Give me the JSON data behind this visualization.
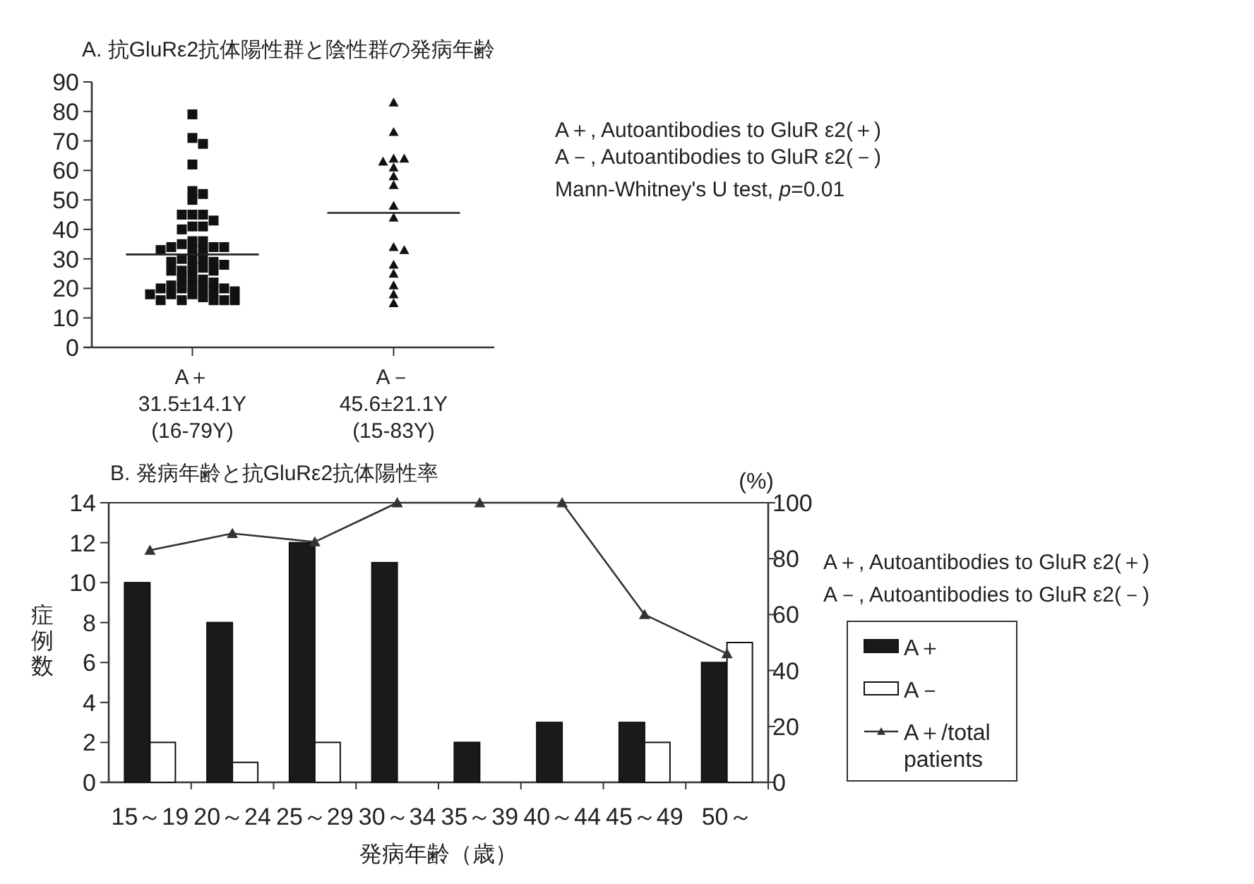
{
  "chart_data": [
    {
      "type": "scatter",
      "title": "A. 抗GluRε2抗体陽性群と陰性群の発病年齢",
      "categories": [
        "A＋\n31.5±14.1Y\n(16-79Y)",
        "A－\n45.6±21.1Y\n(15-83Y)"
      ],
      "series": [
        {
          "type": "scatter",
          "color": "#111111",
          "marker": "square",
          "x": [
            "A＋\n31.5±14.1Y\n(16-79Y)",
            "A＋\n31.5±14.1Y\n(16-79Y)",
            "A＋\n31.5±14.1Y\n(16-79Y)",
            "A＋\n31.5±14.1Y\n(16-79Y)",
            "A＋\n31.5±14.1Y\n(16-79Y)",
            "A＋\n31.5±14.1Y\n(16-79Y)",
            "A＋\n31.5±14.1Y\n(16-79Y)",
            "A＋\n31.5±14.1Y\n(16-79Y)",
            "A＋\n31.5±14.1Y\n(16-79Y)",
            "A＋\n31.5±14.1Y\n(16-79Y)",
            "A＋\n31.5±14.1Y\n(16-79Y)",
            "A＋\n31.5±14.1Y\n(16-79Y)",
            "A＋\n31.5±14.1Y\n(16-79Y)",
            "A＋\n31.5±14.1Y\n(16-79Y)",
            "A＋\n31.5±14.1Y\n(16-79Y)",
            "A＋\n31.5±14.1Y\n(16-79Y)",
            "A＋\n31.5±14.1Y\n(16-79Y)",
            "A＋\n31.5±14.1Y\n(16-79Y)",
            "A＋\n31.5±14.1Y\n(16-79Y)",
            "A＋\n31.5±14.1Y\n(16-79Y)",
            "A＋\n31.5±14.1Y\n(16-79Y)",
            "A＋\n31.5±14.1Y\n(16-79Y)",
            "A＋\n31.5±14.1Y\n(16-79Y)",
            "A＋\n31.5±14.1Y\n(16-79Y)",
            "A＋\n31.5±14.1Y\n(16-79Y)",
            "A＋\n31.5±14.1Y\n(16-79Y)",
            "A＋\n31.5±14.1Y\n(16-79Y)",
            "A＋\n31.5±14.1Y\n(16-79Y)",
            "A＋\n31.5±14.1Y\n(16-79Y)",
            "A＋\n31.5±14.1Y\n(16-79Y)",
            "A＋\n31.5±14.1Y\n(16-79Y)",
            "A＋\n31.5±14.1Y\n(16-79Y)",
            "A＋\n31.5±14.1Y\n(16-79Y)",
            "A＋\n31.5±14.1Y\n(16-79Y)",
            "A＋\n31.5±14.1Y\n(16-79Y)",
            "A＋\n31.5±14.1Y\n(16-79Y)",
            "A＋\n31.5±14.1Y\n(16-79Y)",
            "A＋\n31.5±14.1Y\n(16-79Y)",
            "A＋\n31.5±14.1Y\n(16-79Y)",
            "A＋\n31.5±14.1Y\n(16-79Y)",
            "A＋\n31.5±14.1Y\n(16-79Y)",
            "A＋\n31.5±14.1Y\n(16-79Y)",
            "A＋\n31.5±14.1Y\n(16-79Y)",
            "A＋\n31.5±14.1Y\n(16-79Y)",
            "A＋\n31.5±14.1Y\n(16-79Y)",
            "A＋\n31.5±14.1Y\n(16-79Y)",
            "A＋\n31.5±14.1Y\n(16-79Y)",
            "A＋\n31.5±14.1Y\n(16-79Y)",
            "A＋\n31.5±14.1Y\n(16-79Y)",
            "A＋\n31.5±14.1Y\n(16-79Y)",
            "A＋\n31.5±14.1Y\n(16-79Y)",
            "A＋\n31.5±14.1Y\n(16-79Y)",
            "A＋\n31.5±14.1Y\n(16-79Y)",
            "A＋\n31.5±14.1Y\n(16-79Y)",
            "A＋\n31.5±14.1Y\n(16-79Y)"
          ],
          "values": [
            79,
            71,
            69,
            62,
            53,
            52,
            50,
            45,
            45,
            45,
            43,
            41,
            41,
            40,
            36,
            36,
            35,
            34,
            34,
            34,
            33,
            33,
            33,
            30,
            30,
            30,
            29,
            29,
            28,
            27,
            27,
            26,
            26,
            26,
            24,
            23,
            23,
            22,
            21,
            21,
            20,
            20,
            20,
            20,
            19,
            19,
            18,
            18,
            18,
            17,
            16,
            16,
            16,
            16,
            16
          ]
        },
        {
          "type": "scatter",
          "color": "#111111",
          "marker": "triangle",
          "x": [
            "A－\n45.6±21.1Y\n(15-83Y)",
            "A－\n45.6±21.1Y\n(15-83Y)",
            "A－\n45.6±21.1Y\n(15-83Y)",
            "A－\n45.6±21.1Y\n(15-83Y)",
            "A－\n45.6±21.1Y\n(15-83Y)",
            "A－\n45.6±21.1Y\n(15-83Y)",
            "A－\n45.6±21.1Y\n(15-83Y)",
            "A－\n45.6±21.1Y\n(15-83Y)",
            "A－\n45.6±21.1Y\n(15-83Y)",
            "A－\n45.6±21.1Y\n(15-83Y)",
            "A－\n45.6±21.1Y\n(15-83Y)",
            "A－\n45.6±21.1Y\n(15-83Y)",
            "A－\n45.6±21.1Y\n(15-83Y)",
            "A－\n45.6±21.1Y\n(15-83Y)",
            "A－\n45.6±21.1Y\n(15-83Y)",
            "A－\n45.6±21.1Y\n(15-83Y)",
            "A－\n45.6±21.1Y\n(15-83Y)"
          ],
          "values": [
            83,
            73,
            64,
            64,
            63,
            61,
            58,
            55,
            48,
            44,
            34,
            33,
            28,
            25,
            21,
            18,
            15
          ]
        }
      ],
      "ref_lines": [
        {
          "axis": "y",
          "value": 31.5
        },
        {
          "axis": "y",
          "value": 45.6
        }
      ],
      "ylim": [
        0,
        90
      ],
      "yticks": [
        0,
        10,
        20,
        30,
        40,
        50,
        60,
        70,
        80,
        90
      ],
      "annotations": [
        "A＋, Autoantibodies to GluR ε2(＋)",
        "A－, Autoantibodies to GluR ε2(－)",
        "Mann-Whitney's U test, *p*=0.01"
      ]
    },
    {
      "type": "bar",
      "title": "B. 発病年齢と抗GluRε2抗体陽性率",
      "xlabel": "発病年齢（歳）",
      "ylabel": "症例数",
      "y2label": "(%)",
      "categories": [
        "15～19",
        "20～24",
        "25～29",
        "30～34",
        "35～39",
        "40～44",
        "45～49",
        "50～"
      ],
      "series": [
        {
          "type": "bar",
          "name": "A＋",
          "color": "#1a1a1a",
          "values": [
            10,
            8,
            12,
            11,
            2,
            3,
            3,
            6
          ]
        },
        {
          "type": "bar",
          "name": "A－",
          "color": "#ffffff",
          "values": [
            2,
            1,
            2,
            0,
            0,
            0,
            2,
            7
          ]
        },
        {
          "type": "line",
          "name": "A＋/total patients",
          "color": "#333333",
          "axis": "y2",
          "marker": "triangle",
          "values": [
            83,
            89,
            86,
            100,
            100,
            100,
            60,
            46
          ]
        }
      ],
      "ylim": [
        0,
        14
      ],
      "yticks": [
        0,
        2,
        4,
        6,
        8,
        10,
        12,
        14
      ],
      "y2lim": [
        0,
        100
      ],
      "y2ticks": [
        0,
        20,
        40,
        60,
        80,
        100
      ],
      "legend": "right",
      "annotations": [
        "A＋, Autoantibodies to GluR ε2(＋)",
        "A－, Autoantibodies to GluR ε2(－)"
      ]
    }
  ]
}
